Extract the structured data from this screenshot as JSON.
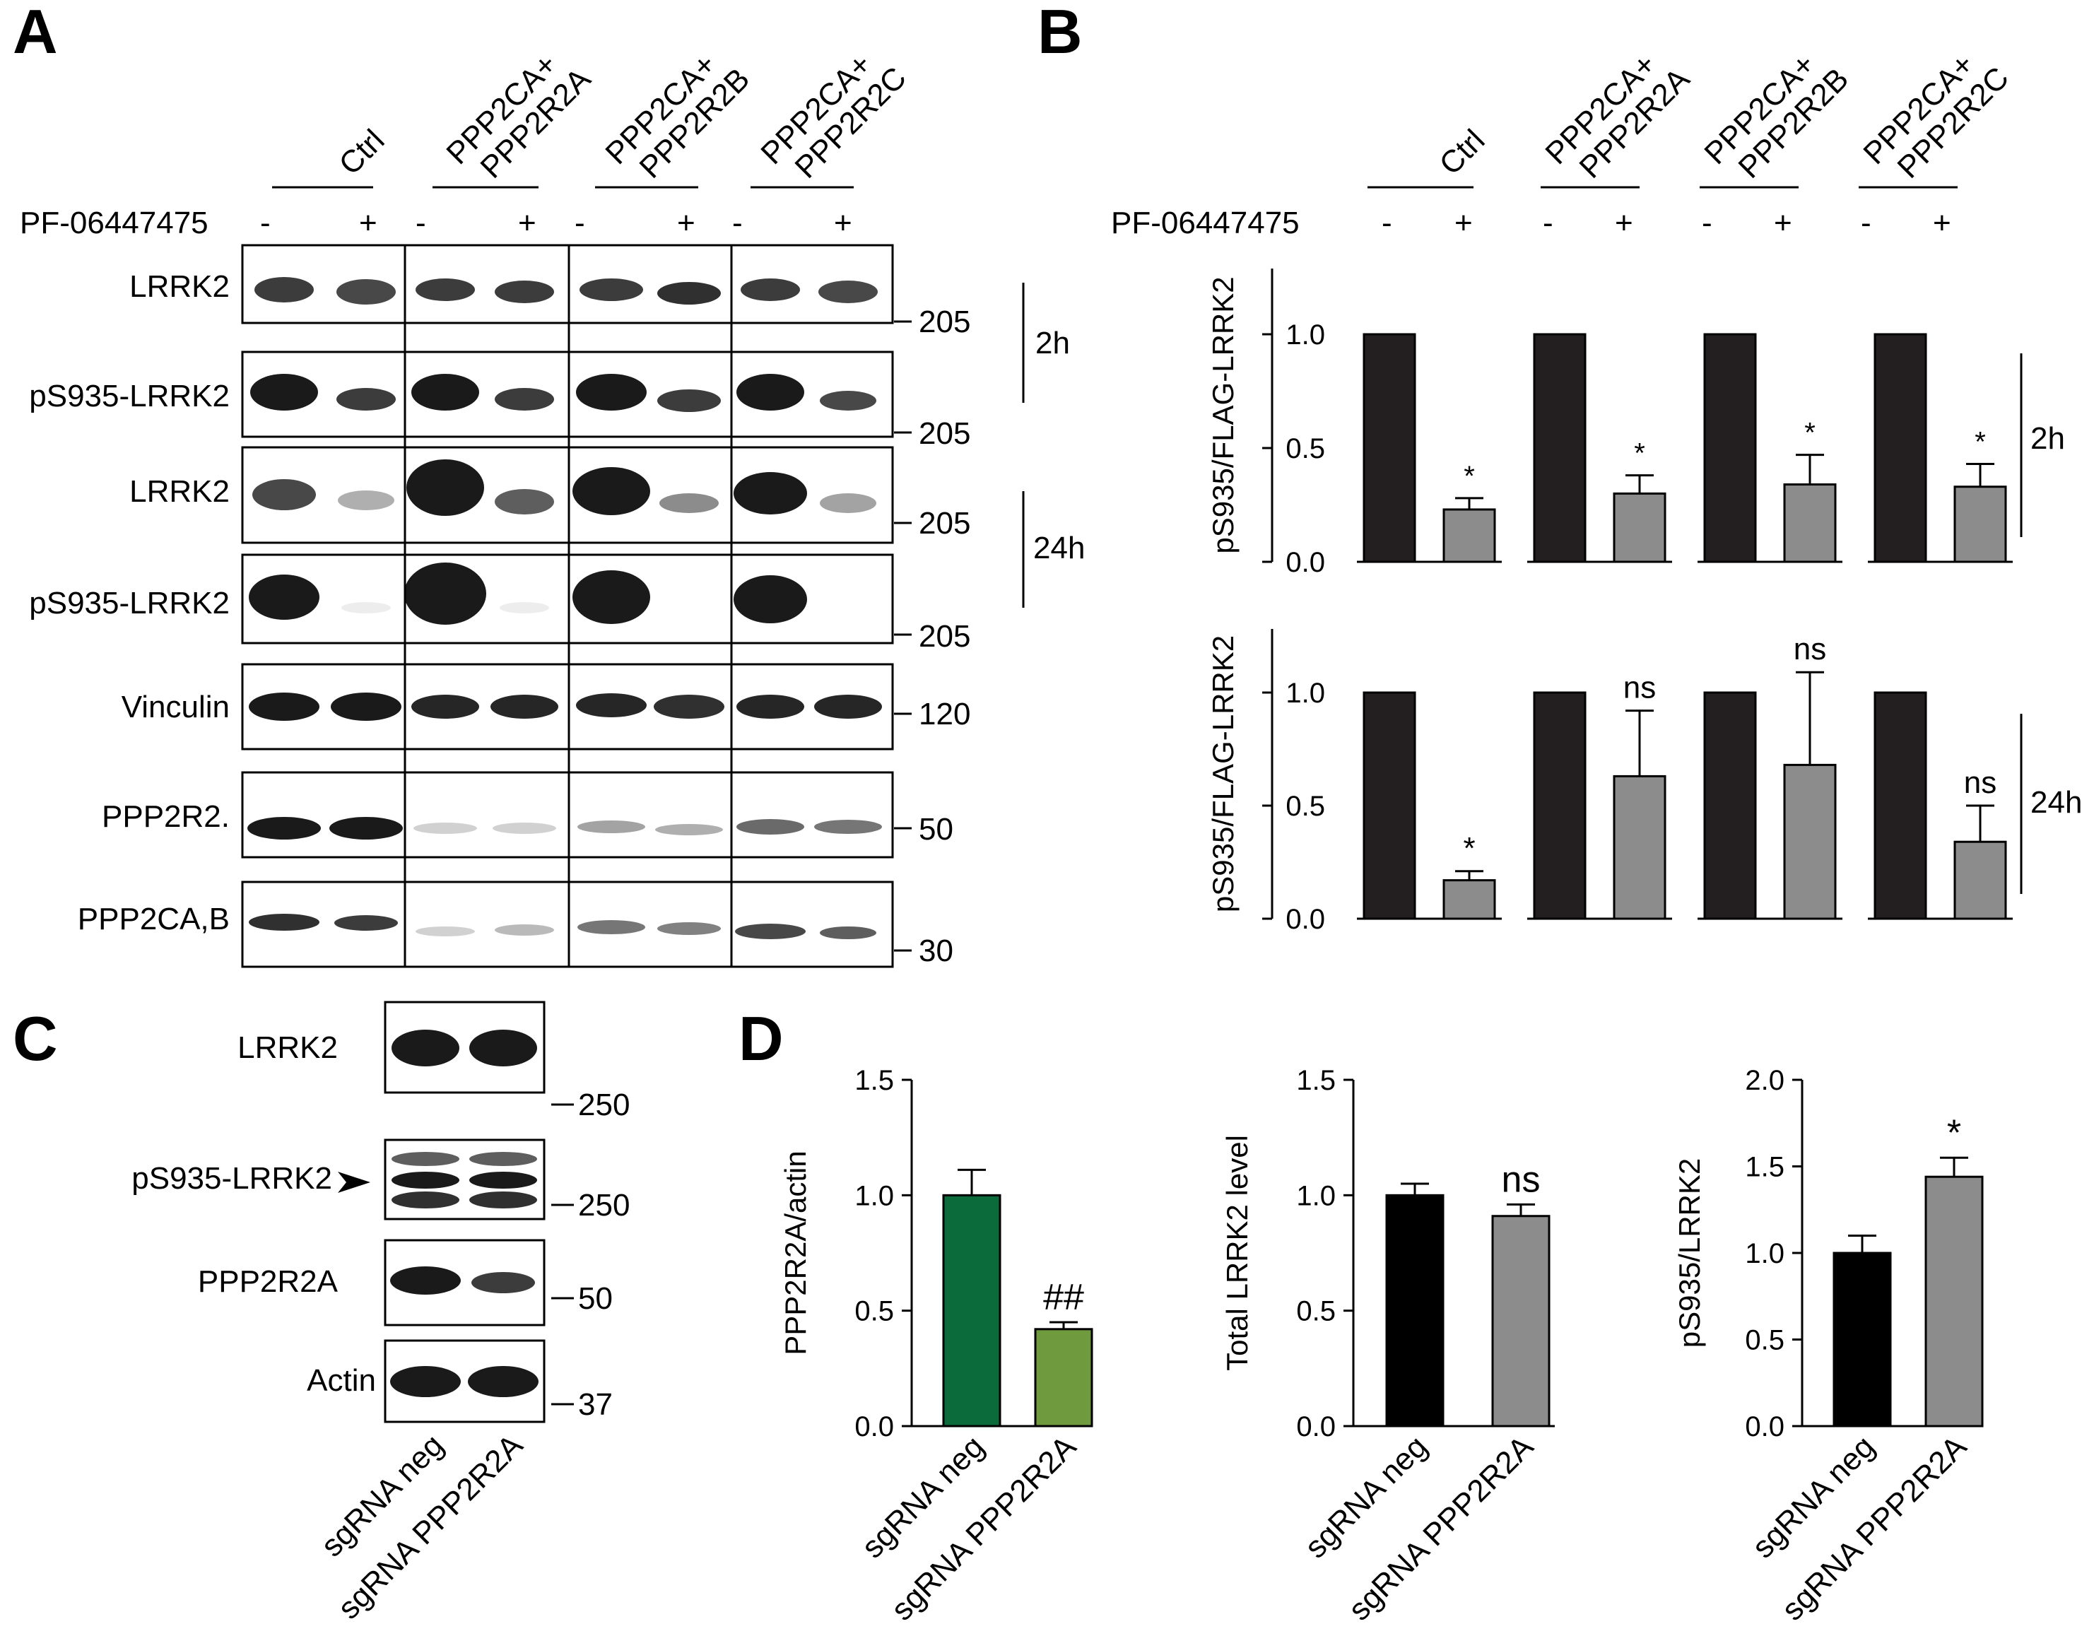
{
  "panels": {
    "A": "A",
    "B": "B",
    "C": "C",
    "D": "D"
  },
  "blot_a": {
    "conditions": [
      {
        "line1": "Ctrl",
        "line2": ""
      },
      {
        "line1": "PPP2CA+",
        "line2": "PPP2R2A"
      },
      {
        "line1": "PPP2CA+",
        "line2": "PPP2R2B"
      },
      {
        "line1": "PPP2CA+",
        "line2": "PPP2R2C"
      }
    ],
    "treatment_label": "PF-06447475",
    "treatment_signs": [
      "-",
      "+",
      "-",
      "+",
      "-",
      "+",
      "-",
      "+"
    ],
    "rows": [
      {
        "label": "LRRK2",
        "marker": "205"
      },
      {
        "label": "pS935-LRRK2",
        "marker": "205"
      },
      {
        "label": "LRRK2",
        "marker": "205"
      },
      {
        "label": "pS935-LRRK2",
        "marker": "205"
      },
      {
        "label": "Vinculin",
        "marker": "120"
      },
      {
        "label": "PPP2R2.",
        "marker": "50"
      },
      {
        "label": "PPP2CA,B",
        "marker": "30"
      }
    ],
    "times": [
      "2h",
      "24h"
    ]
  },
  "blot_c": {
    "rows": [
      {
        "label": "LRRK2",
        "marker": "250"
      },
      {
        "label": "pS935-LRRK2",
        "marker": "250"
      },
      {
        "label": "PPP2R2A",
        "marker": "50"
      },
      {
        "label": "Actin",
        "marker": "37"
      }
    ],
    "lanes": [
      "sgRNA neg",
      "sgRNA PPP2R2A"
    ]
  },
  "chart_data": [
    {
      "panel": "B",
      "type": "bar",
      "categories": [
        "Ctrl -",
        "Ctrl +",
        "PPP2CA+PPP2R2A -",
        "PPP2CA+PPP2R2A +",
        "PPP2CA+PPP2R2B -",
        "PPP2CA+PPP2R2B +",
        "PPP2CA+PPP2R2C -",
        "PPP2CA+PPP2R2C +"
      ],
      "values": [
        1.0,
        0.23,
        1.0,
        0.3,
        1.0,
        0.34,
        1.0,
        0.33
      ],
      "errors": [
        0,
        0.05,
        0,
        0.08,
        0,
        0.13,
        0,
        0.1
      ],
      "annotations": [
        "",
        "*",
        "",
        "*",
        "",
        "*",
        "",
        "*"
      ],
      "colors": [
        "#231f20",
        "#8c8c8c"
      ],
      "ylabel": "pS935/FLAG-LRRK2",
      "ylim": [
        0,
        1.0
      ],
      "yticks": [
        0.0,
        0.5,
        1.0
      ],
      "yticklabels": [
        "0.0",
        "0.5",
        "1.0"
      ],
      "time": "2h"
    },
    {
      "panel": "B",
      "type": "bar",
      "categories": [
        "Ctrl -",
        "Ctrl +",
        "PPP2CA+PPP2R2A -",
        "PPP2CA+PPP2R2A +",
        "PPP2CA+PPP2R2B -",
        "PPP2CA+PPP2R2B +",
        "PPP2CA+PPP2R2C -",
        "PPP2CA+PPP2R2C +"
      ],
      "values": [
        1.0,
        0.17,
        1.0,
        0.63,
        1.0,
        0.68,
        1.0,
        0.34
      ],
      "errors": [
        0,
        0.04,
        0,
        0.29,
        0,
        0.41,
        0,
        0.16
      ],
      "annotations": [
        "",
        "*",
        "",
        "ns",
        "",
        "ns",
        "",
        "ns"
      ],
      "colors": [
        "#231f20",
        "#8c8c8c"
      ],
      "ylabel": "pS935/FLAG-LRRK2",
      "ylim": [
        0,
        1.0
      ],
      "yticks": [
        0.0,
        0.5,
        1.0
      ],
      "yticklabels": [
        "0.0",
        "0.5",
        "1.0"
      ],
      "time": "24h"
    },
    {
      "panel": "D",
      "type": "bar",
      "categories": [
        "sgRNA neg",
        "sgRNA PPP2R2A"
      ],
      "values": [
        1.0,
        0.42
      ],
      "errors": [
        0.11,
        0.03
      ],
      "annotations": [
        "",
        "##"
      ],
      "colors": [
        "#0b6b3a",
        "#6f9a3e"
      ],
      "ylabel": "PPP2R2A/actin",
      "ylim": [
        0,
        1.5
      ],
      "yticks": [
        0.0,
        0.5,
        1.0,
        1.5
      ],
      "yticklabels": [
        "0.0",
        "0.5",
        "1.0",
        "1.5"
      ]
    },
    {
      "panel": "D",
      "type": "bar",
      "categories": [
        "sgRNA neg",
        "sgRNA PPP2R2A"
      ],
      "values": [
        1.0,
        0.91
      ],
      "errors": [
        0.05,
        0.05
      ],
      "annotations": [
        "",
        "ns"
      ],
      "colors": [
        "#000000",
        "#8c8c8c"
      ],
      "ylabel": "Total LRRK2 level",
      "ylim": [
        0,
        1.5
      ],
      "yticks": [
        0.0,
        0.5,
        1.0,
        1.5
      ],
      "yticklabels": [
        "0.0",
        "0.5",
        "1.0",
        "1.5"
      ]
    },
    {
      "panel": "D",
      "type": "bar",
      "categories": [
        "sgRNA neg",
        "sgRNA PPP2R2A"
      ],
      "values": [
        1.0,
        1.44
      ],
      "errors": [
        0.1,
        0.11
      ],
      "annotations": [
        "",
        "*"
      ],
      "colors": [
        "#000000",
        "#8c8c8c"
      ],
      "ylabel": "pS935/LRRK2",
      "ylim": [
        0,
        2.0
      ],
      "yticks": [
        0.0,
        0.5,
        1.0,
        1.5,
        2.0
      ],
      "yticklabels": [
        "0.0",
        "0.5",
        "1.0",
        "1.5",
        "2.0"
      ]
    }
  ]
}
